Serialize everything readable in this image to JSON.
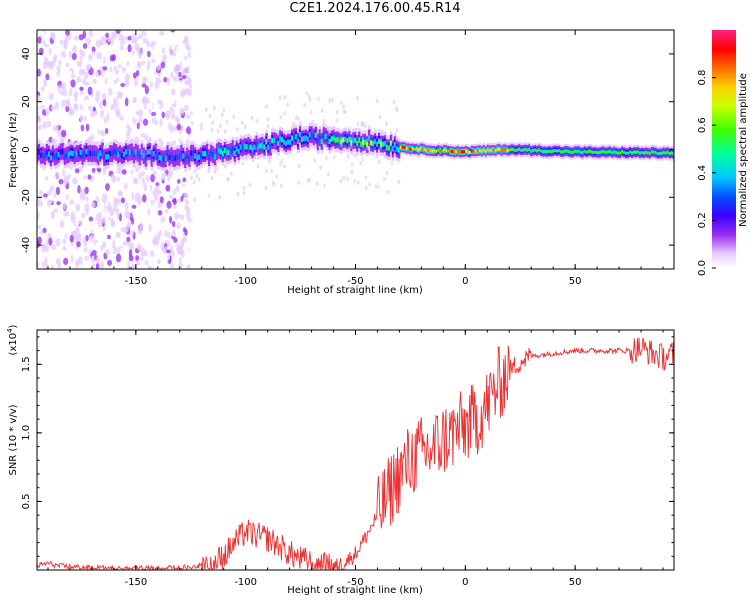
{
  "title": "C2E1.2024.176.00.45.R14",
  "chart_data": [
    {
      "type": "heatmap",
      "xlabel": "Height of straight line (km)",
      "ylabel": "Frequency (Hz)",
      "xlim": [
        -195,
        95
      ],
      "ylim": [
        -50,
        50
      ],
      "xticks": [
        -150,
        -100,
        -50,
        0,
        50
      ],
      "yticks": [
        -40,
        -20,
        0,
        20,
        40
      ],
      "colorbar": {
        "label": "Normalized spectral amplitude",
        "range": [
          0.0,
          1.0
        ],
        "ticks": [
          0.0,
          0.2,
          0.4,
          0.6,
          0.8
        ]
      },
      "ridge_frequency_hz": {
        "x": [
          -195,
          -150,
          -125,
          -100,
          -75,
          -50,
          -40,
          -30,
          -20,
          0,
          20,
          50,
          95
        ],
        "y": [
          -2,
          -2,
          -3,
          0,
          5,
          4,
          3,
          1,
          0,
          -1,
          0,
          -1,
          -1.5
        ]
      },
      "noise_region_x": [
        -195,
        -125
      ]
    },
    {
      "type": "line",
      "xlabel": "Height of straight line (km)",
      "ylabel": "SNR (10 * v/v)",
      "yscale_label": "(x10",
      "yscale_exp": "4",
      "xlim": [
        -195,
        95
      ],
      "ylim": [
        0,
        1.75
      ],
      "xticks": [
        -150,
        -100,
        -50,
        0,
        50
      ],
      "yticks": [
        0.5,
        1.0,
        1.5
      ],
      "ytick_labels": [
        "0.5",
        "1.0",
        "1.5"
      ],
      "color": "#ee3030",
      "series": [
        {
          "x": [
            -195,
            -190,
            -185,
            -175,
            -160,
            -140,
            -125,
            -115,
            -110,
            -105,
            -100,
            -95,
            -90,
            -85,
            -80,
            -75,
            -70,
            -65,
            -60,
            -55,
            -50,
            -45,
            -40,
            -35,
            -30,
            -25,
            -20,
            -15,
            -10,
            -5,
            0,
            5,
            10,
            15,
            20,
            25,
            30,
            40,
            50,
            60,
            70,
            75,
            80,
            85,
            90,
            95
          ],
          "y": [
            0.03,
            0.05,
            0.03,
            0.02,
            0.01,
            0.01,
            0.02,
            0.05,
            0.1,
            0.2,
            0.28,
            0.25,
            0.23,
            0.18,
            0.12,
            0.08,
            0.05,
            0.03,
            0.02,
            0.05,
            0.12,
            0.25,
            0.4,
            0.55,
            0.7,
            0.8,
            0.85,
            0.88,
            0.95,
            1.0,
            1.05,
            1.1,
            1.2,
            1.35,
            1.45,
            1.52,
            1.56,
            1.58,
            1.6,
            1.6,
            1.6,
            1.6,
            1.62,
            1.58,
            1.55,
            1.58
          ]
        }
      ]
    }
  ]
}
